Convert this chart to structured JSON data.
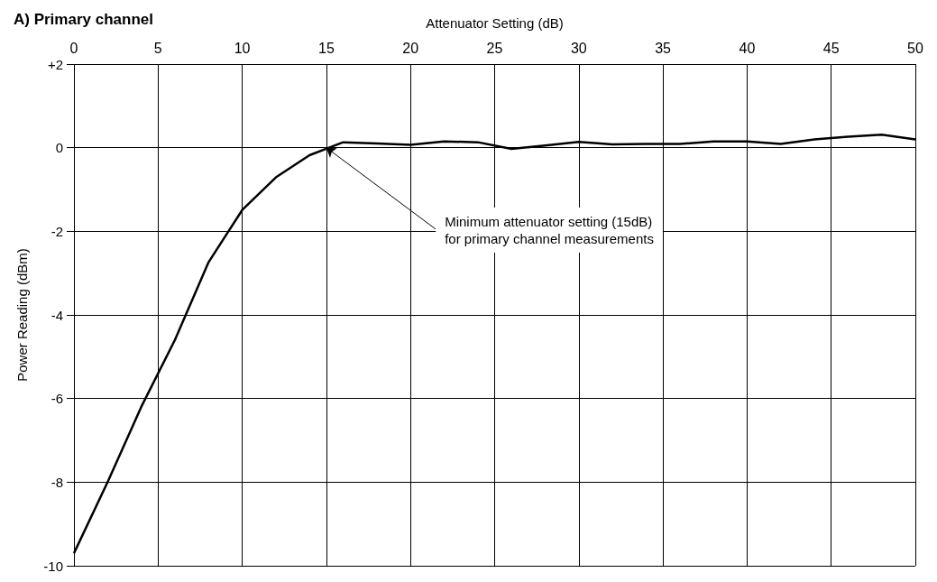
{
  "chart_data": {
    "type": "line",
    "title": "A) Primary channel",
    "xlabel": "Attenuator Setting (dB)",
    "ylabel": "Power Reading (dBm)",
    "x": [
      0,
      2,
      4,
      6,
      8,
      10,
      12,
      14,
      16,
      18,
      20,
      22,
      24,
      26,
      28,
      30,
      32,
      34,
      36,
      38,
      40,
      42,
      44,
      46,
      48,
      50
    ],
    "series": [
      {
        "color": "#000000",
        "values": [
          -9.7,
          -8.0,
          -6.2,
          -4.6,
          -2.74,
          -1.49,
          -0.71,
          -0.18,
          0.13,
          0.1,
          0.07,
          0.15,
          0.13,
          -0.03,
          0.05,
          0.14,
          0.08,
          0.09,
          0.09,
          0.15,
          0.15,
          0.09,
          0.2,
          0.26,
          0.31,
          0.2
        ]
      }
    ],
    "xlim": [
      0,
      50
    ],
    "xticks": [
      0,
      5,
      10,
      15,
      20,
      25,
      30,
      35,
      40,
      45,
      50
    ],
    "ylim": [
      -10,
      2
    ],
    "yticks": [
      -10,
      -8,
      -6,
      -4,
      -2,
      0,
      {
        "value": 2,
        "label": "+2"
      }
    ],
    "annotations": [
      {
        "text": "Minimum attenuator setting (15dB)\nfor primary channel measurements",
        "x": 15,
        "y": 0
      }
    ],
    "grid": true,
    "marker": "none",
    "line_style": "solid"
  }
}
